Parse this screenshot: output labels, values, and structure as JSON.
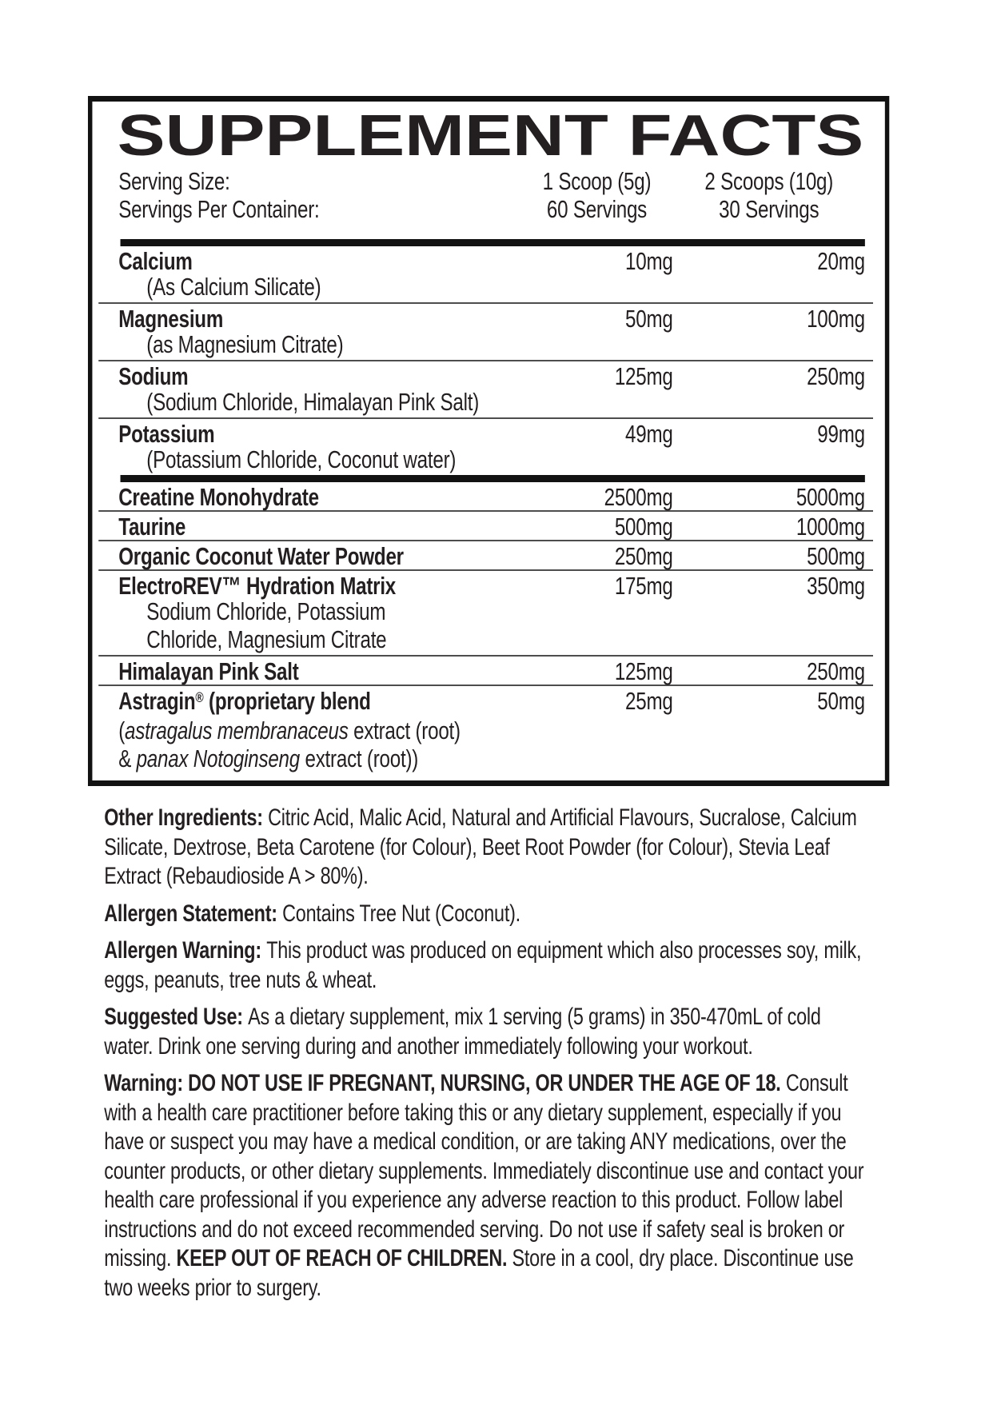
{
  "label": {
    "title": "SUPPLEMENT FACTS",
    "serving_header": {
      "rows": [
        {
          "label": "Serving Size:",
          "col1": "1 Scoop (5g)",
          "col2": "2 Scoops (10g)"
        },
        {
          "label": "Servings Per Container:",
          "col1": "60 Servings",
          "col2": "30 Servings"
        }
      ]
    },
    "ingredients": [
      {
        "name_runs": [
          {
            "t": "Calcium",
            "b": true
          }
        ],
        "amt1": "10mg",
        "amt2": "20mg",
        "subs": [
          {
            "indent": true,
            "runs": [
              {
                "t": "(As Calcium Silicate)"
              }
            ]
          }
        ],
        "rule": "thin"
      },
      {
        "name_runs": [
          {
            "t": "Magnesium",
            "b": true
          }
        ],
        "amt1": "50mg",
        "amt2": "100mg",
        "subs": [
          {
            "indent": true,
            "runs": [
              {
                "t": "(as Magnesium Citrate)"
              }
            ]
          }
        ],
        "rule": "thin"
      },
      {
        "name_runs": [
          {
            "t": "Sodium",
            "b": true
          }
        ],
        "amt1": "125mg",
        "amt2": "250mg",
        "subs": [
          {
            "indent": true,
            "runs": [
              {
                "t": "(Sodium Chloride, Himalayan Pink Salt)"
              }
            ]
          }
        ],
        "rule": "thin"
      },
      {
        "name_runs": [
          {
            "t": "Potassium",
            "b": true
          }
        ],
        "amt1": "49mg",
        "amt2": "99mg",
        "subs": [
          {
            "indent": true,
            "runs": [
              {
                "t": "(Potassium Chloride, Coconut water)"
              }
            ]
          }
        ],
        "rule": "thick"
      },
      {
        "name_runs": [
          {
            "t": "Creatine Monohydrate",
            "b": true
          }
        ],
        "amt1": "2500mg",
        "amt2": "5000mg",
        "subs": [],
        "rule": "thin"
      },
      {
        "name_runs": [
          {
            "t": "Taurine",
            "b": true
          }
        ],
        "amt1": "500mg",
        "amt2": "1000mg",
        "subs": [],
        "rule": "thin"
      },
      {
        "name_runs": [
          {
            "t": "Organic Coconut Water Powder",
            "b": true
          }
        ],
        "amt1": "250mg",
        "amt2": "500mg",
        "subs": [],
        "rule": "thin"
      },
      {
        "name_runs": [
          {
            "t": "ElectroREV™ Hydration Matrix",
            "b": true
          }
        ],
        "amt1": "175mg",
        "amt2": "350mg",
        "subs": [
          {
            "indent": true,
            "runs": [
              {
                "t": "Sodium Chloride, Potassium"
              }
            ]
          },
          {
            "indent": true,
            "runs": [
              {
                "t": "Chloride, Magnesium Citrate"
              }
            ]
          }
        ],
        "rule": "thin"
      },
      {
        "name_runs": [
          {
            "t": "Himalayan Pink Salt",
            "b": true
          }
        ],
        "amt1": "125mg",
        "amt2": "250mg",
        "subs": [],
        "rule": "thin"
      },
      {
        "name_runs": [
          {
            "t": "Astragin",
            "b": true
          },
          {
            "t": "®",
            "b": true,
            "sup": true
          },
          {
            "t": " (proprietary blend"
          }
        ],
        "amt1": "25mg",
        "amt2": "50mg",
        "subs": [
          {
            "indent": false,
            "runs": [
              {
                "t": "("
              },
              {
                "t": "astragalus membranaceus",
                "i": true
              },
              {
                "t": " extract (root)"
              }
            ]
          },
          {
            "indent": false,
            "runs": [
              {
                "t": "& "
              },
              {
                "t": "panax Notoginseng",
                "i": true
              },
              {
                "t": " extract (root))"
              }
            ]
          }
        ],
        "rule": "none"
      }
    ],
    "paragraphs": [
      {
        "key": "other-ingredients",
        "runs": [
          {
            "t": "Other Ingredients: ",
            "b": true
          },
          {
            "t": "Citric Acid, Malic Acid, Natural and Artificial Flavours, Sucralose, Calcium Silicate, Dextrose, Beta Carotene (for Colour), Beet Root Powder (for Colour), Stevia Leaf Extract (Rebaudioside A > 80%)."
          }
        ]
      },
      {
        "key": "allergen-statement",
        "runs": [
          {
            "t": "Allergen Statement: ",
            "b": true
          },
          {
            "t": "Contains Tree Nut (Coconut)."
          }
        ]
      },
      {
        "key": "allergen-warning",
        "runs": [
          {
            "t": "Allergen Warning: ",
            "b": true
          },
          {
            "t": "This product was produced on equipment which also processes soy, milk, eggs, peanuts, tree nuts & wheat."
          }
        ]
      },
      {
        "key": "suggested-use",
        "runs": [
          {
            "t": "Suggested Use: ",
            "b": true
          },
          {
            "t": "As a dietary supplement, mix 1 serving (5 grams) in 350-470mL of cold water. Drink one serving during and another immediately following your workout."
          }
        ]
      },
      {
        "key": "warning",
        "runs": [
          {
            "t": "Warning: DO NOT USE IF PREGNANT, NURSING, OR UNDER THE AGE OF 18. ",
            "b": true
          },
          {
            "t": "Consult with a health care practitioner before taking this or any dietary supplement, especially if you have or suspect you may have a medical condition, or are taking ANY medications, over the counter products, or other dietary supplements. Immediately discontinue use and contact your health care professional if you experience any adverse reaction to this product. Follow label instructions and do not exceed recommended serving. Do not use if safety seal is broken or missing. "
          },
          {
            "t": "KEEP OUT OF REACH OF CHILDREN.",
            "b": true
          },
          {
            "t": " Store in a cool, dry place. Discontinue use two weeks prior to surgery."
          }
        ]
      }
    ],
    "colors": {
      "text": "#231f20",
      "border": "#121212",
      "rule_thick": "#121212",
      "rule_thin": "#4d4d4d",
      "background": "#ffffff"
    }
  }
}
